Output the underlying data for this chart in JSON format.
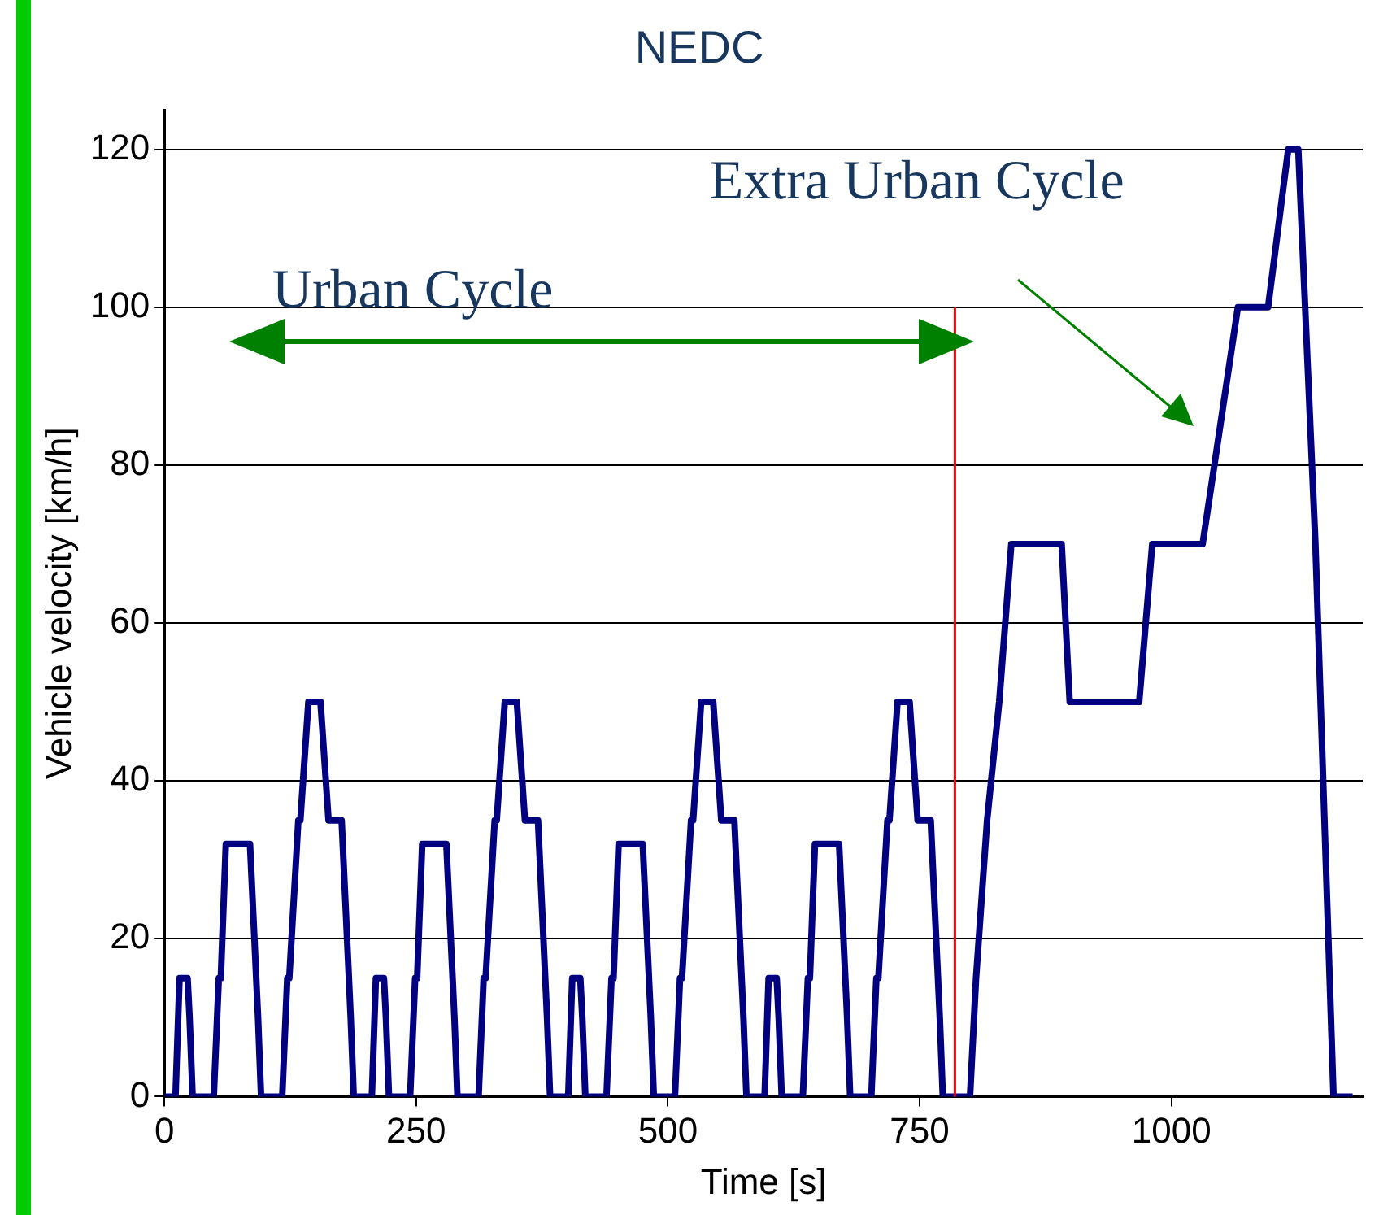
{
  "chart_data": {
    "type": "line",
    "title": "NEDC",
    "xlabel": "Time [s]",
    "ylabel": "Vehicle velocity [km/h]",
    "annotations": [
      "Urban Cycle",
      "Extra Urban Cycle"
    ],
    "xlim": [
      0,
      1190
    ],
    "xticks": [
      0,
      250,
      500,
      750,
      1000
    ],
    "ylim": [
      0,
      125
    ],
    "yticks": [
      0,
      20,
      40,
      60,
      80,
      100,
      120
    ],
    "grid": "y",
    "legend": false,
    "marker": "none",
    "line_style": "solid",
    "ref_lines": [
      {
        "axis": "x",
        "value": 785,
        "color": "#ff0000"
      }
    ],
    "series": [
      {
        "color": "#000080",
        "x": [
          0,
          11,
          15,
          23,
          25,
          28,
          49,
          54,
          56,
          61,
          85,
          93,
          96,
          117,
          122,
          124,
          133,
          135,
          143,
          155,
          163,
          176,
          185,
          188,
          195,
          206,
          210,
          218,
          220,
          223,
          244,
          249,
          251,
          256,
          280,
          288,
          291,
          312,
          317,
          319,
          328,
          330,
          338,
          350,
          358,
          371,
          380,
          383,
          390,
          401,
          405,
          413,
          415,
          418,
          439,
          444,
          446,
          451,
          475,
          483,
          486,
          507,
          512,
          514,
          523,
          525,
          533,
          545,
          553,
          566,
          575,
          578,
          585,
          596,
          600,
          608,
          610,
          613,
          634,
          639,
          641,
          646,
          670,
          678,
          681,
          702,
          707,
          709,
          718,
          720,
          728,
          740,
          748,
          761,
          770,
          773,
          780,
          800,
          806,
          817,
          829,
          841,
          891,
          899,
          968,
          981,
          1031,
          1066,
          1096,
          1116,
          1126,
          1143,
          1161,
          1180
        ],
        "values": [
          0,
          0,
          15,
          15,
          10,
          0,
          0,
          15,
          15,
          32,
          32,
          10,
          0,
          0,
          15,
          15,
          35,
          35,
          50,
          50,
          35,
          35,
          10,
          0,
          0,
          0,
          15,
          15,
          10,
          0,
          0,
          15,
          15,
          32,
          32,
          10,
          0,
          0,
          15,
          15,
          35,
          35,
          50,
          50,
          35,
          35,
          10,
          0,
          0,
          0,
          15,
          15,
          10,
          0,
          0,
          15,
          15,
          32,
          32,
          10,
          0,
          0,
          15,
          15,
          35,
          35,
          50,
          50,
          35,
          35,
          10,
          0,
          0,
          0,
          15,
          15,
          10,
          0,
          0,
          15,
          15,
          32,
          32,
          10,
          0,
          0,
          15,
          15,
          35,
          35,
          50,
          50,
          35,
          35,
          10,
          0,
          0,
          0,
          15,
          35,
          50,
          70,
          70,
          50,
          50,
          70,
          70,
          100,
          100,
          120,
          120,
          70,
          0,
          0
        ]
      }
    ]
  }
}
